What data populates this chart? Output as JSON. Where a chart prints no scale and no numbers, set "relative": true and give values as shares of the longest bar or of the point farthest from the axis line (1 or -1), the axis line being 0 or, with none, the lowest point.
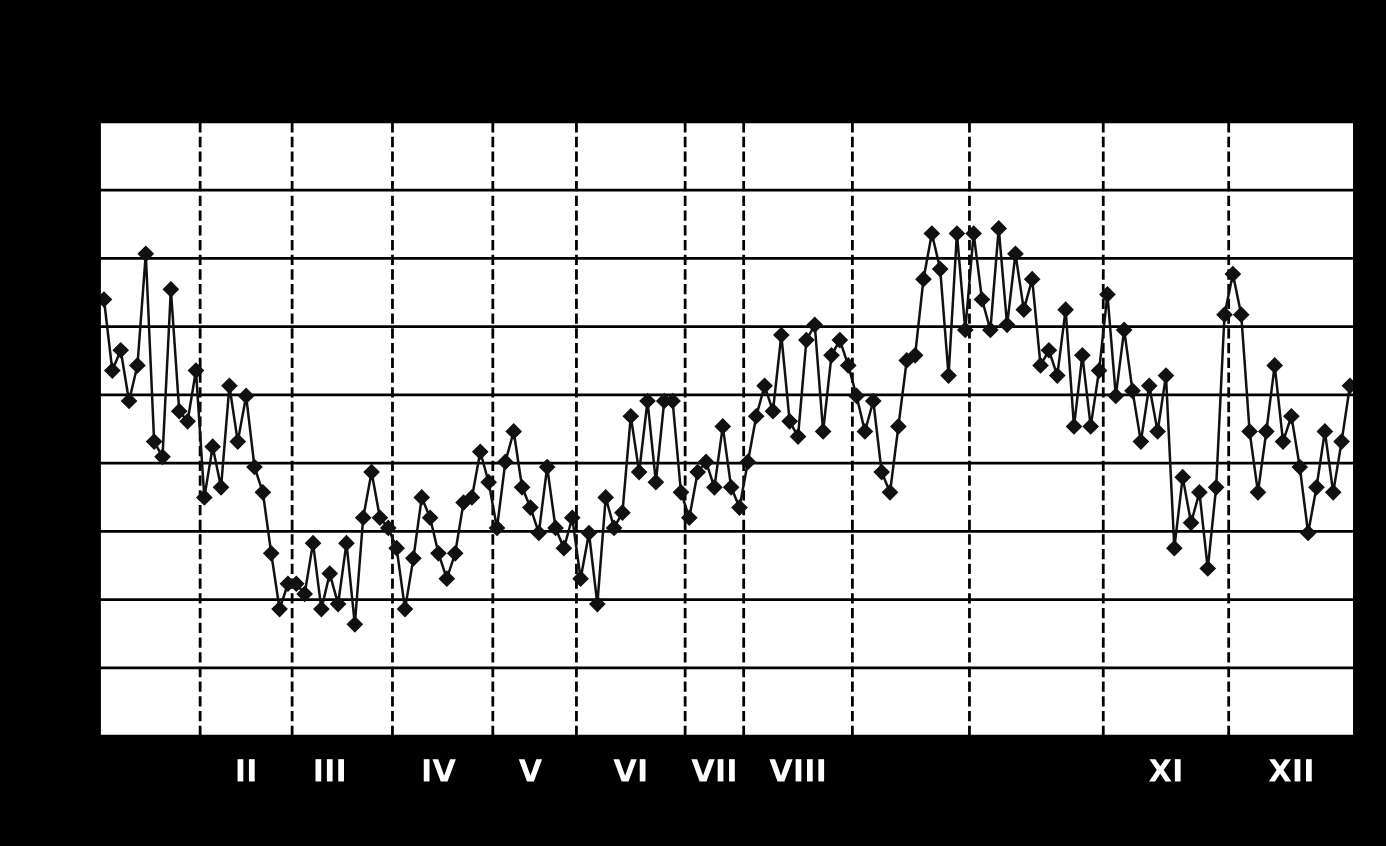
{
  "chart_data": {
    "type": "line",
    "relative": true,
    "marker": "diamond",
    "line_style": "solid",
    "grid": "y",
    "categories": [
      null,
      null,
      null,
      null,
      null,
      null,
      null,
      null,
      null,
      null,
      null,
      null,
      null,
      null,
      null,
      null,
      null,
      "II",
      null,
      null,
      null,
      null,
      null,
      null,
      null,
      null,
      null,
      "III",
      null,
      null,
      null,
      null,
      null,
      null,
      null,
      null,
      null,
      null,
      null,
      null,
      "IV",
      null,
      null,
      null,
      null,
      null,
      null,
      null,
      null,
      null,
      null,
      "V",
      null,
      null,
      null,
      null,
      null,
      null,
      null,
      null,
      null,
      null,
      null,
      "VI",
      null,
      null,
      null,
      null,
      null,
      null,
      null,
      null,
      null,
      "VII",
      null,
      null,
      null,
      null,
      null,
      null,
      null,
      null,
      null,
      "VIII",
      null,
      null,
      null,
      null,
      null,
      null,
      null,
      null,
      null,
      null,
      null,
      null,
      null,
      null,
      null,
      null,
      null,
      null,
      null,
      null,
      null,
      null,
      null,
      null,
      null,
      null,
      null,
      null,
      null,
      null,
      null,
      null,
      null,
      null,
      null,
      null,
      null,
      null,
      null,
      null,
      null,
      null,
      null,
      "XI",
      null,
      null,
      null,
      null,
      null,
      null,
      null,
      null,
      null,
      null,
      null,
      null,
      null,
      null,
      "XII",
      null,
      null,
      null,
      null,
      null,
      null,
      null
    ],
    "series": [
      {
        "color": "#111111",
        "values": [
          0.86,
          0.72,
          0.76,
          0.66,
          0.73,
          0.95,
          0.58,
          0.55,
          0.88,
          0.64,
          0.62,
          0.72,
          0.47,
          0.57,
          0.49,
          0.69,
          0.58,
          0.67,
          0.53,
          0.48,
          0.36,
          0.25,
          0.3,
          0.3,
          0.28,
          0.38,
          0.25,
          0.32,
          0.26,
          0.38,
          0.22,
          0.43,
          0.52,
          0.43,
          0.41,
          0.37,
          0.25,
          0.35,
          0.47,
          0.43,
          0.36,
          0.31,
          0.36,
          0.46,
          0.47,
          0.56,
          0.5,
          0.41,
          0.54,
          0.6,
          0.49,
          0.45,
          0.4,
          0.53,
          0.41,
          0.37,
          0.43,
          0.31,
          0.4,
          0.26,
          0.47,
          0.41,
          0.44,
          0.63,
          0.52,
          0.66,
          0.5,
          0.66,
          0.66,
          0.48,
          0.43,
          0.52,
          0.54,
          0.49,
          0.61,
          0.49,
          0.45,
          0.54,
          0.63,
          0.69,
          0.64,
          0.79,
          0.62,
          0.59,
          0.78,
          0.81,
          0.6,
          0.75,
          0.78,
          0.73,
          0.67,
          0.6,
          0.66,
          0.52,
          0.48,
          0.61,
          0.74,
          0.75,
          0.9,
          0.99,
          0.92,
          0.71,
          0.99,
          0.8,
          0.99,
          0.86,
          0.8,
          1.0,
          0.81,
          0.95,
          0.84,
          0.9,
          0.73,
          0.76,
          0.71,
          0.84,
          0.61,
          0.75,
          0.61,
          0.72,
          0.87,
          0.67,
          0.8,
          0.68,
          0.58,
          0.69,
          0.6,
          0.71,
          0.37,
          0.51,
          0.42,
          0.48,
          0.33,
          0.49,
          0.83,
          0.91,
          0.83,
          0.6,
          0.48,
          0.6,
          0.73,
          0.58,
          0.63,
          0.53,
          0.4,
          0.49,
          0.6,
          0.48,
          0.58,
          0.69
        ]
      }
    ]
  }
}
